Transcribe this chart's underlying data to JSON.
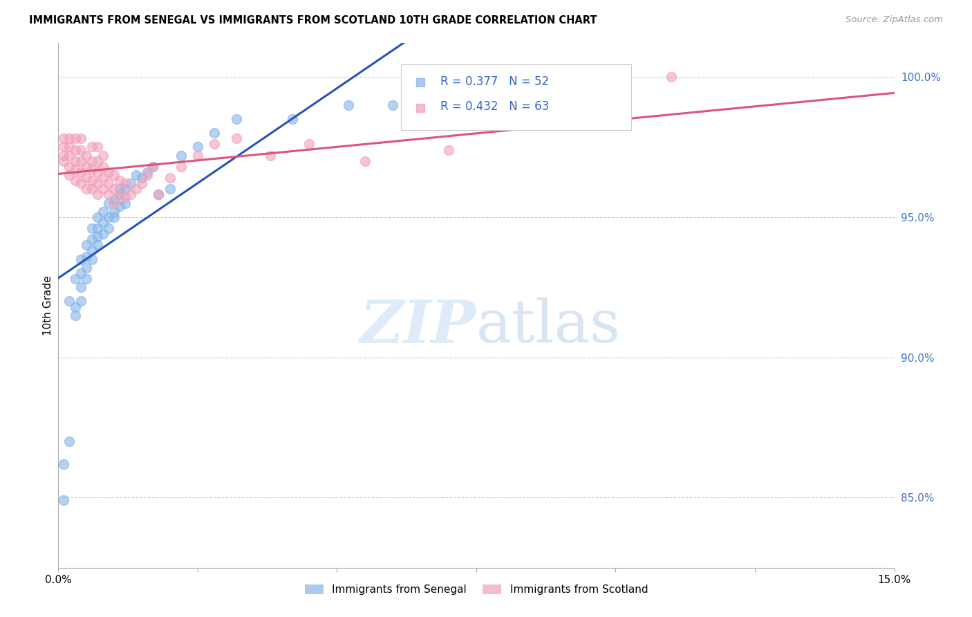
{
  "title": "IMMIGRANTS FROM SENEGAL VS IMMIGRANTS FROM SCOTLAND 10TH GRADE CORRELATION CHART",
  "source": "Source: ZipAtlas.com",
  "ylabel": "10th Grade",
  "yaxis_labels": [
    "85.0%",
    "90.0%",
    "95.0%",
    "100.0%"
  ],
  "yaxis_values": [
    0.85,
    0.9,
    0.95,
    1.0
  ],
  "xlim": [
    0.0,
    0.15
  ],
  "ylim": [
    0.825,
    1.012
  ],
  "R_senegal": 0.377,
  "N_senegal": 52,
  "R_scotland": 0.432,
  "N_scotland": 63,
  "color_senegal": "#85b4e8",
  "color_scotland": "#f0a0b8",
  "trendline_color_senegal": "#2255bb",
  "trendline_color_scotland": "#dd5577",
  "background_color": "#ffffff",
  "senegal_x": [
    0.001,
    0.001,
    0.002,
    0.002,
    0.003,
    0.003,
    0.003,
    0.004,
    0.004,
    0.004,
    0.004,
    0.005,
    0.005,
    0.005,
    0.005,
    0.006,
    0.006,
    0.006,
    0.006,
    0.007,
    0.007,
    0.007,
    0.007,
    0.008,
    0.008,
    0.008,
    0.009,
    0.009,
    0.009,
    0.01,
    0.01,
    0.01,
    0.011,
    0.011,
    0.011,
    0.012,
    0.012,
    0.013,
    0.014,
    0.015,
    0.016,
    0.017,
    0.018,
    0.02,
    0.022,
    0.025,
    0.028,
    0.032,
    0.042,
    0.052,
    0.06,
    0.075
  ],
  "senegal_y": [
    0.849,
    0.862,
    0.87,
    0.92,
    0.915,
    0.918,
    0.928,
    0.92,
    0.925,
    0.93,
    0.935,
    0.928,
    0.932,
    0.936,
    0.94,
    0.935,
    0.938,
    0.942,
    0.946,
    0.94,
    0.943,
    0.946,
    0.95,
    0.944,
    0.948,
    0.952,
    0.946,
    0.95,
    0.955,
    0.95,
    0.952,
    0.956,
    0.954,
    0.958,
    0.96,
    0.955,
    0.96,
    0.962,
    0.965,
    0.964,
    0.966,
    0.968,
    0.958,
    0.96,
    0.972,
    0.975,
    0.98,
    0.985,
    0.985,
    0.99,
    0.99,
    0.995
  ],
  "scotland_x": [
    0.001,
    0.001,
    0.001,
    0.001,
    0.002,
    0.002,
    0.002,
    0.002,
    0.002,
    0.003,
    0.003,
    0.003,
    0.003,
    0.003,
    0.004,
    0.004,
    0.004,
    0.004,
    0.004,
    0.005,
    0.005,
    0.005,
    0.005,
    0.006,
    0.006,
    0.006,
    0.006,
    0.006,
    0.007,
    0.007,
    0.007,
    0.007,
    0.007,
    0.008,
    0.008,
    0.008,
    0.008,
    0.009,
    0.009,
    0.009,
    0.01,
    0.01,
    0.01,
    0.011,
    0.011,
    0.012,
    0.012,
    0.013,
    0.014,
    0.015,
    0.016,
    0.017,
    0.018,
    0.02,
    0.022,
    0.025,
    0.028,
    0.032,
    0.038,
    0.045,
    0.055,
    0.07,
    0.11
  ],
  "scotland_y": [
    0.97,
    0.972,
    0.975,
    0.978,
    0.965,
    0.968,
    0.972,
    0.975,
    0.978,
    0.963,
    0.967,
    0.97,
    0.974,
    0.978,
    0.962,
    0.966,
    0.97,
    0.974,
    0.978,
    0.96,
    0.964,
    0.968,
    0.972,
    0.96,
    0.963,
    0.967,
    0.97,
    0.975,
    0.958,
    0.962,
    0.966,
    0.97,
    0.975,
    0.96,
    0.964,
    0.968,
    0.972,
    0.958,
    0.962,
    0.966,
    0.955,
    0.96,
    0.965,
    0.958,
    0.963,
    0.957,
    0.962,
    0.958,
    0.96,
    0.962,
    0.965,
    0.968,
    0.958,
    0.964,
    0.968,
    0.972,
    0.976,
    0.978,
    0.972,
    0.976,
    0.97,
    0.974,
    1.0
  ]
}
